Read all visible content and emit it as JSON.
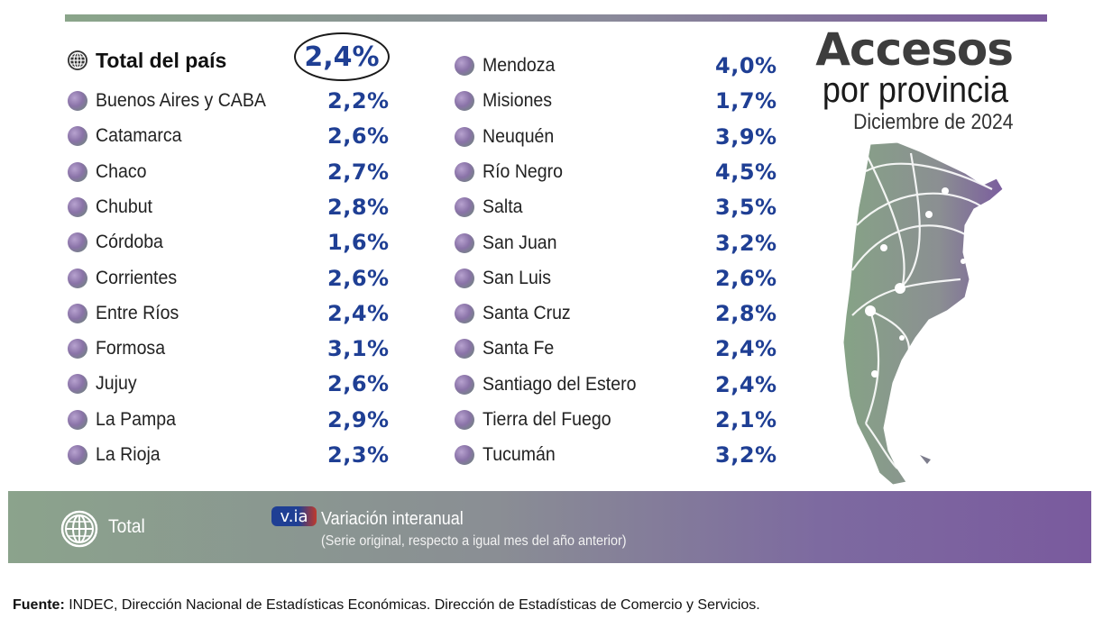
{
  "title": {
    "main": "Accesos",
    "sub": "por provincia",
    "date": "Diciembre de 2024"
  },
  "total": {
    "label": "Total del país",
    "value": "2,4%"
  },
  "left_column": [
    {
      "name": "Buenos Aires y CABA",
      "value": "2,2%"
    },
    {
      "name": "Catamarca",
      "value": "2,6%"
    },
    {
      "name": "Chaco",
      "value": "2,7%"
    },
    {
      "name": "Chubut",
      "value": "2,8%"
    },
    {
      "name": "Córdoba",
      "value": "1,6%"
    },
    {
      "name": "Corrientes",
      "value": "2,6%"
    },
    {
      "name": "Entre Ríos",
      "value": "2,4%"
    },
    {
      "name": "Formosa",
      "value": "3,1%"
    },
    {
      "name": "Jujuy",
      "value": "2,6%"
    },
    {
      "name": "La Pampa",
      "value": "2,9%"
    },
    {
      "name": "La Rioja",
      "value": "2,3%"
    }
  ],
  "right_column": [
    {
      "name": "Mendoza",
      "value": "4,0%"
    },
    {
      "name": "Misiones",
      "value": "1,7%"
    },
    {
      "name": "Neuquén",
      "value": "3,9%"
    },
    {
      "name": "Río Negro",
      "value": "4,5%"
    },
    {
      "name": "Salta",
      "value": "3,5%"
    },
    {
      "name": "San Juan",
      "value": "3,2%"
    },
    {
      "name": "San Luis",
      "value": "2,6%"
    },
    {
      "name": "Santa Cruz",
      "value": "2,8%"
    },
    {
      "name": "Santa Fe",
      "value": "2,4%"
    },
    {
      "name": "Santiago del Estero",
      "value": "2,4%"
    },
    {
      "name": "Tierra del Fuego",
      "value": "2,1%"
    },
    {
      "name": "Tucumán",
      "value": "3,2%"
    }
  ],
  "legend": {
    "total_label": "Total",
    "via_badge": "v.ia",
    "via_title": "Variación interanual",
    "via_subtitle": "(Serie original, respecto a igual mes del año anterior)"
  },
  "footer": {
    "label": "Fuente:",
    "text": " INDEC, Dirección Nacional de Estadísticas Económicas. Dirección de Estadísticas de Comercio y Servicios."
  },
  "colors": {
    "value_blue": "#1f3f94",
    "green": "#8ba38c",
    "purple": "#7a5a9e"
  },
  "icons": {
    "total": "globe-icon",
    "province": "dot-icon",
    "map": "argentina-map"
  }
}
